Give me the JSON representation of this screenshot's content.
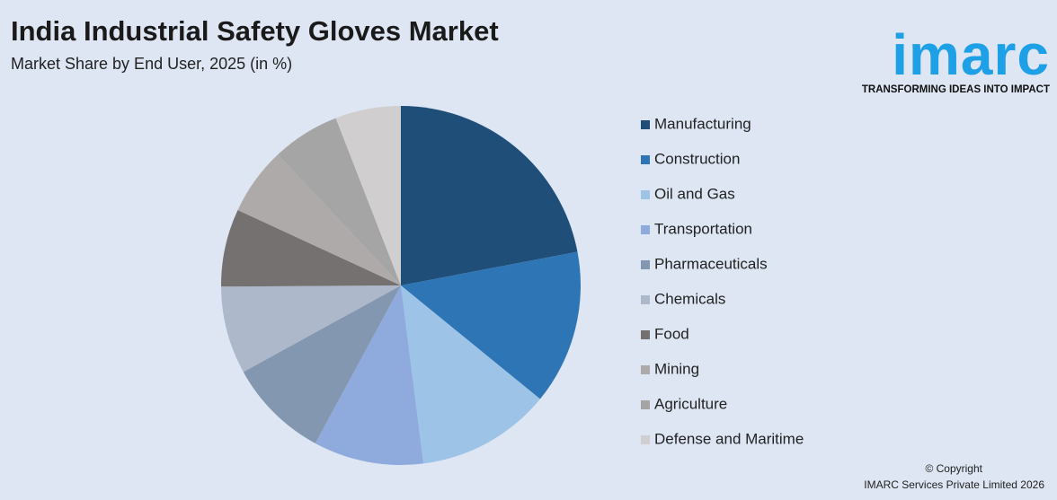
{
  "chart_data": {
    "type": "pie",
    "title": "India Industrial Safety Gloves Market",
    "subtitle": "Market Share by End User, 2025 (in %)",
    "categories": [
      "Manufacturing",
      "Construction",
      "Oil and Gas",
      "Transportation",
      "Pharmaceuticals",
      "Chemicals",
      "Food",
      "Mining",
      "Agriculture",
      "Defense and Maritime"
    ],
    "values": [
      22.0,
      13.9,
      12.1,
      9.9,
      9.1,
      7.9,
      7.0,
      6.1,
      6.1,
      5.9
    ],
    "colors": [
      "#1f4e79",
      "#2e75b6",
      "#9dc3e6",
      "#8faadc",
      "#8497b0",
      "#adb9ca",
      "#767171",
      "#aeaaaa",
      "#a5a5a5",
      "#d0cece"
    ],
    "legend": "right"
  },
  "branding": {
    "logo": "imarc",
    "tagline": "TRANSFORMING IDEAS INTO IMPACT",
    "copyright": "© Copyright",
    "company": "IMARC Services Private Limited 2026"
  }
}
